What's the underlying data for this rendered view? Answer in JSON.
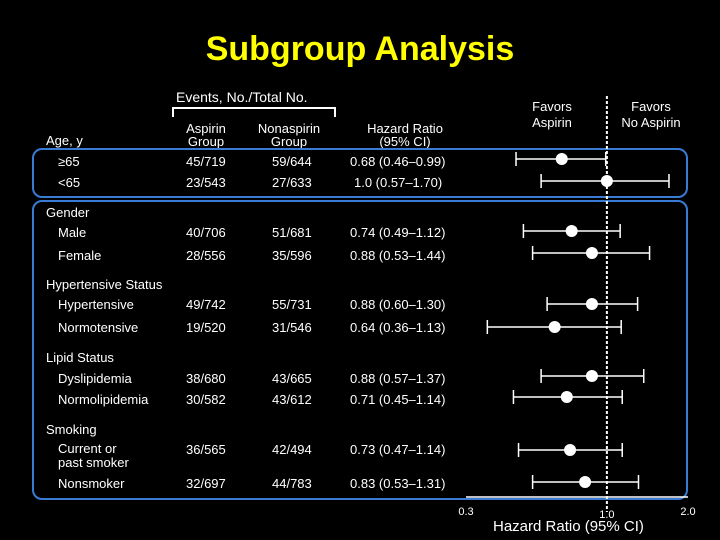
{
  "title": "Subgroup Analysis",
  "events_header": "Events, No./Total No.",
  "columns": {
    "group_line1": "Aspirin",
    "group_line2": "Group",
    "non_line1": "Nonaspirin",
    "non_line2": "Group",
    "hr_line1": "Hazard Ratio",
    "hr_line2": "(95% CI)"
  },
  "favors": {
    "left_line1": "Favors",
    "left_line2": "Aspirin",
    "right_line1": "Favors",
    "right_line2": "No Aspirin"
  },
  "colors": {
    "title": "#ffff00",
    "highlight": "#3a7bd5",
    "marks": "#ffffff"
  },
  "groups": [
    {
      "label": "Age, y",
      "rows": [
        {
          "label": "≥65",
          "aspirin": "45/719",
          "nonaspirin": "59/644",
          "hr_text": "0.68 (0.46–0.99)"
        },
        {
          "label": "<65",
          "aspirin": "23/543",
          "nonaspirin": "27/633",
          "hr_text": "1.0 (0.57–1.70)"
        }
      ]
    },
    {
      "label": "Gender",
      "rows": [
        {
          "label": "Male",
          "aspirin": "40/706",
          "nonaspirin": "51/681",
          "hr_text": "0.74 (0.49–1.12)"
        },
        {
          "label": "Female",
          "aspirin": "28/556",
          "nonaspirin": "35/596",
          "hr_text": "0.88 (0.53–1.44)"
        }
      ]
    },
    {
      "label": "Hypertensive Status",
      "rows": [
        {
          "label": "Hypertensive",
          "aspirin": "49/742",
          "nonaspirin": "55/731",
          "hr_text": "0.88 (0.60–1.30)"
        },
        {
          "label": "Normotensive",
          "aspirin": "19/520",
          "nonaspirin": "31/546",
          "hr_text": "0.64 (0.36–1.13)"
        }
      ]
    },
    {
      "label": "Lipid Status",
      "rows": [
        {
          "label": "Dyslipidemia",
          "aspirin": "38/680",
          "nonaspirin": "43/665",
          "hr_text": "0.88 (0.57–1.37)"
        },
        {
          "label": "Normolipidemia",
          "aspirin": "30/582",
          "nonaspirin": "43/612",
          "hr_text": "0.71 (0.45–1.14)"
        }
      ]
    },
    {
      "label": "Smoking",
      "rows": [
        {
          "label_line1": "Current or",
          "label_line2": "past smoker",
          "aspirin": "36/565",
          "nonaspirin": "42/494",
          "hr_text": "0.73 (0.47–1.14)"
        },
        {
          "label": "Nonsmoker",
          "aspirin": "32/697",
          "nonaspirin": "44/783",
          "hr_text": "0.83 (0.53–1.31)"
        }
      ]
    }
  ],
  "chart_data": {
    "type": "scatter",
    "xscale": "log",
    "xlim": [
      0.3,
      2.0
    ],
    "xlabel": "Hazard Ratio (95% CI)",
    "xticks": [
      {
        "value": 0.3,
        "label": "0.3"
      },
      {
        "value": 1.0,
        "label": "1.0"
      },
      {
        "value": 2.0,
        "label": "2.0"
      }
    ],
    "reference_line": 1.0,
    "points": [
      {
        "hr": 0.68,
        "lo": 0.46,
        "hi": 0.99
      },
      {
        "hr": 1.0,
        "lo": 0.57,
        "hi": 1.7
      },
      {
        "hr": 0.74,
        "lo": 0.49,
        "hi": 1.12
      },
      {
        "hr": 0.88,
        "lo": 0.53,
        "hi": 1.44
      },
      {
        "hr": 0.88,
        "lo": 0.6,
        "hi": 1.3
      },
      {
        "hr": 0.64,
        "lo": 0.36,
        "hi": 1.13
      },
      {
        "hr": 0.88,
        "lo": 0.57,
        "hi": 1.37
      },
      {
        "hr": 0.71,
        "lo": 0.45,
        "hi": 1.14
      },
      {
        "hr": 0.73,
        "lo": 0.47,
        "hi": 1.14
      },
      {
        "hr": 0.83,
        "lo": 0.53,
        "hi": 1.31
      }
    ]
  }
}
